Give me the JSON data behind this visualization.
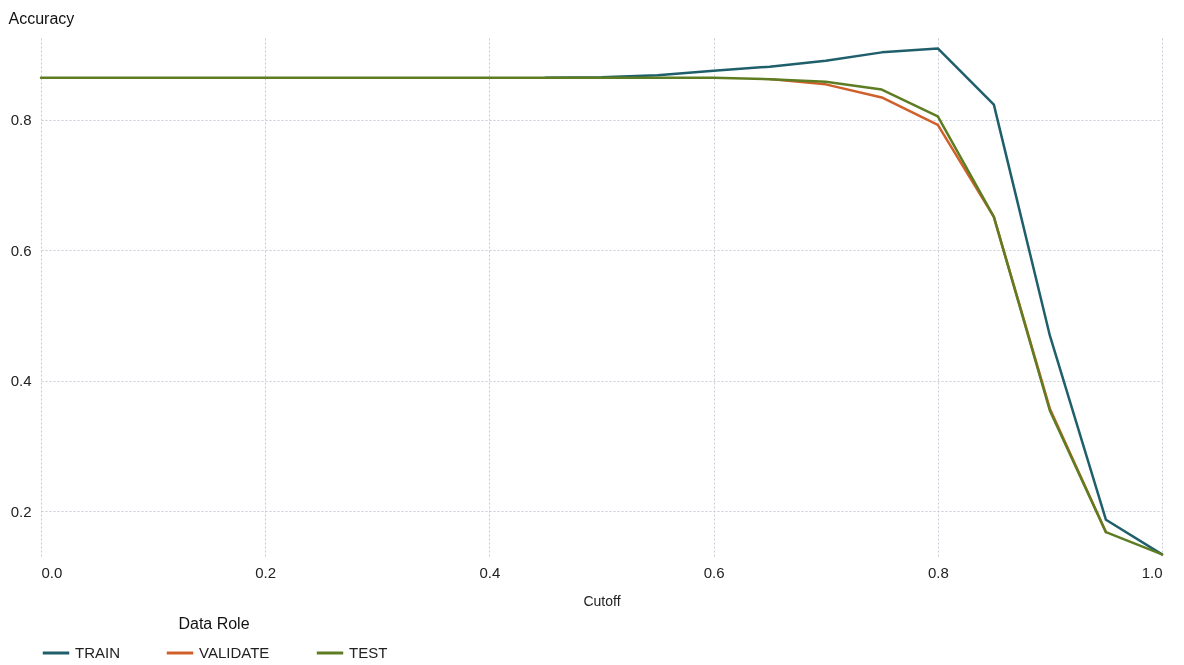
{
  "chart_data": {
    "type": "line",
    "xlabel": "Cutoff",
    "ylabel": "Accuracy",
    "legend_title": "Data Role",
    "x": [
      0,
      0.05,
      0.1,
      0.15,
      0.2,
      0.25,
      0.3,
      0.35,
      0.4,
      0.45,
      0.5,
      0.55,
      0.6,
      0.65,
      0.7,
      0.75,
      0.8,
      0.85,
      0.9,
      0.95,
      1.0
    ],
    "series": [
      {
        "name": "TRAIN",
        "color": "#1f5f6b",
        "values": [
          null,
          null,
          null,
          null,
          null,
          null,
          null,
          null,
          null,
          0.864,
          0.865,
          0.868,
          0.875,
          0.881,
          0.89,
          0.903,
          0.909,
          0.823,
          0.469,
          0.187,
          0.134
        ]
      },
      {
        "name": "VALIDATE",
        "color": "#d0602a",
        "values": [
          null,
          null,
          null,
          null,
          null,
          null,
          null,
          null,
          null,
          null,
          null,
          null,
          null,
          0.862,
          0.854,
          0.834,
          0.792,
          0.651,
          0.357,
          0.168,
          null
        ]
      },
      {
        "name": "TEST",
        "color": "#5e7d23",
        "values": [
          0.864,
          0.864,
          0.864,
          0.864,
          0.864,
          0.864,
          0.864,
          0.864,
          0.864,
          0.864,
          0.864,
          0.864,
          0.864,
          0.862,
          0.858,
          0.846,
          0.805,
          0.651,
          0.354,
          0.168,
          0.134
        ]
      }
    ],
    "xlim": [
      0,
      1
    ],
    "xticks": [
      {
        "value": 0,
        "label": "0.0"
      },
      0.2,
      0.4,
      0.6,
      0.8,
      {
        "value": 1,
        "label": "1.0"
      }
    ],
    "ylim": [
      0.13,
      0.925
    ],
    "yticks": [
      0.2,
      0.4,
      0.6,
      0.8
    ],
    "grid": true,
    "legend": "bottom",
    "marker": "none",
    "line_style": "solid"
  }
}
